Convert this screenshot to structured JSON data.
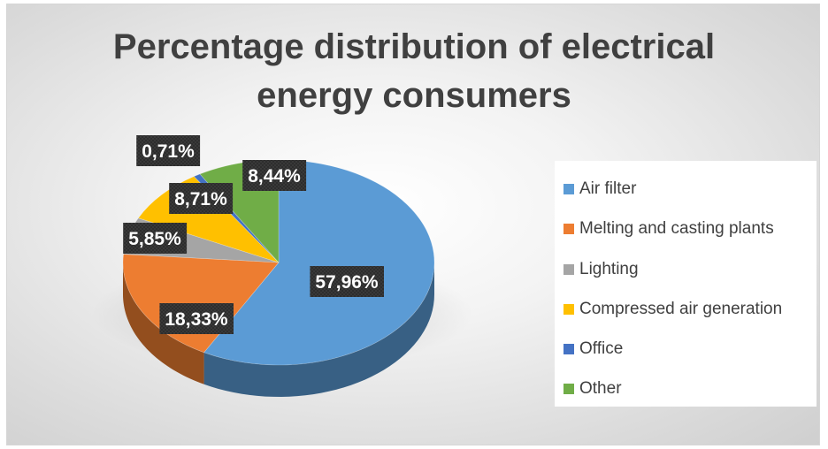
{
  "chart_data": {
    "type": "pie",
    "title": "Percentage distribution of electrical energy consumers",
    "categories": [
      "Air filter",
      "Melting and casting plants",
      "Lighting",
      "Compressed air generation",
      "Office",
      "Other"
    ],
    "values": [
      57.96,
      18.33,
      5.85,
      8.71,
      0.71,
      8.44
    ],
    "value_labels": [
      "57,96%",
      "18,33%",
      "5,85%",
      "8,71%",
      "0,71%",
      "8,44%"
    ],
    "colors": [
      "#5b9bd5",
      "#ed7d31",
      "#a5a5a5",
      "#ffc000",
      "#4472c4",
      "#70ad47"
    ],
    "legend_position": "right",
    "style": "3d"
  },
  "title_lines": [
    "Percentage distribution of electrical",
    "energy consumers"
  ]
}
